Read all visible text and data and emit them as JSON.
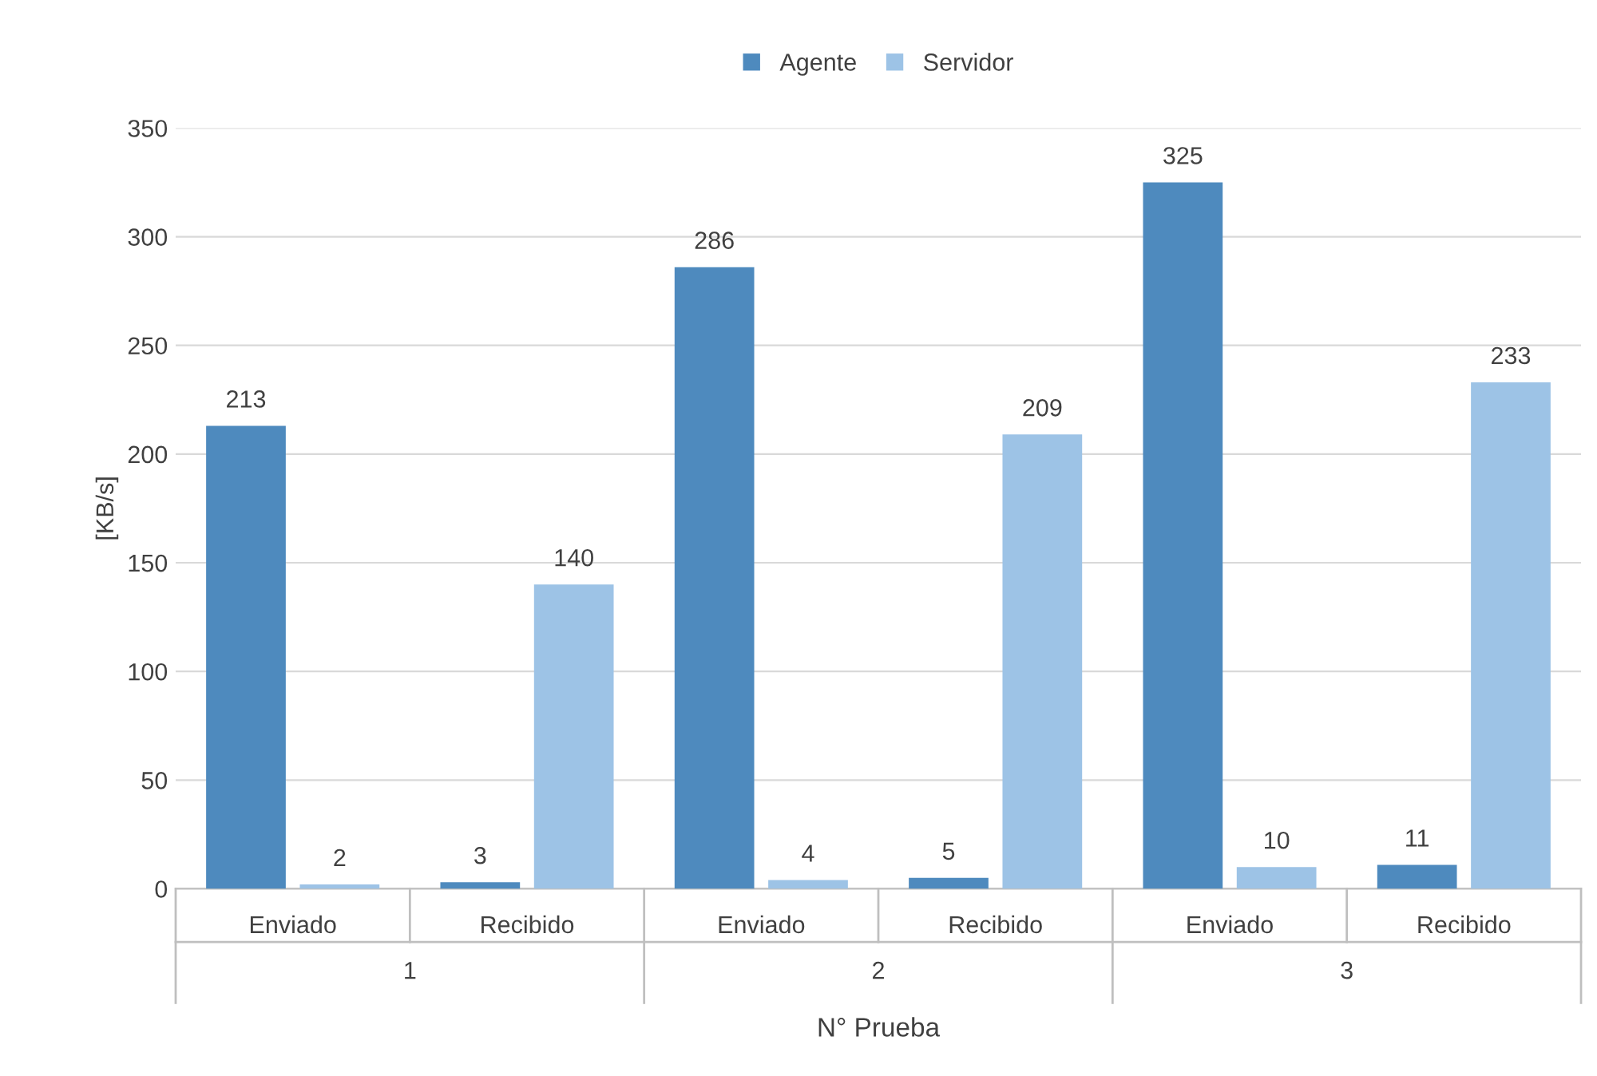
{
  "chart_data": {
    "type": "bar",
    "xlabel": "N° Prueba",
    "ylabel": "[KB/s]",
    "categories": [
      "Enviado",
      "Recibido",
      "Enviado",
      "Recibido",
      "Enviado",
      "Recibido"
    ],
    "annotations": [
      "1",
      "2",
      "3"
    ],
    "series": [
      {
        "name": "Agente",
        "color": "#4e8abe",
        "values": [
          213,
          3,
          286,
          5,
          325,
          11
        ]
      },
      {
        "name": "Servidor",
        "color": "#9dc3e6",
        "values": [
          2,
          140,
          4,
          209,
          10,
          233
        ]
      }
    ],
    "ylim": [
      0,
      350
    ],
    "yticks": [
      0,
      50,
      100,
      150,
      200,
      250,
      300,
      350
    ],
    "grid": "y",
    "legend": "top",
    "data_labels": true
  }
}
